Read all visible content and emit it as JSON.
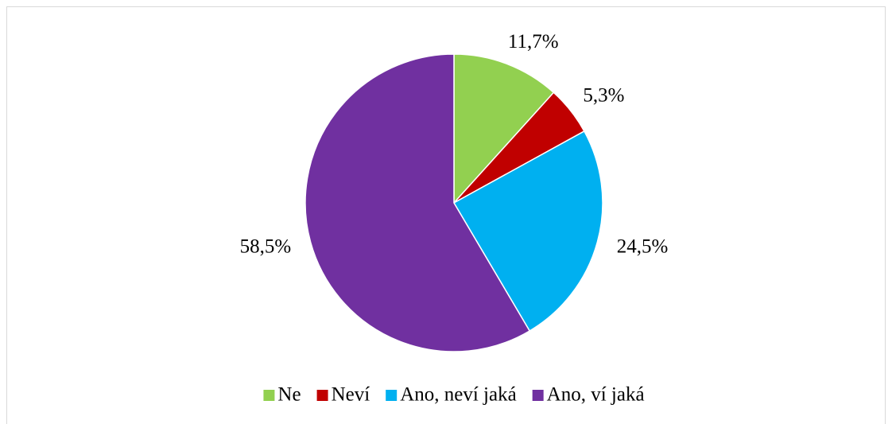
{
  "chart_data": {
    "type": "pie",
    "categories": [
      "Ne",
      "Neví",
      "Ano, neví jaká",
      "Ano, ví jaká"
    ],
    "values": [
      11.7,
      5.3,
      24.5,
      58.5
    ],
    "value_labels": [
      "11,7%",
      "5,3%",
      "24,5%",
      "58,5%"
    ],
    "colors": [
      "#92d050",
      "#c00000",
      "#00b0f0",
      "#7030a0"
    ],
    "legend": "bottom"
  }
}
